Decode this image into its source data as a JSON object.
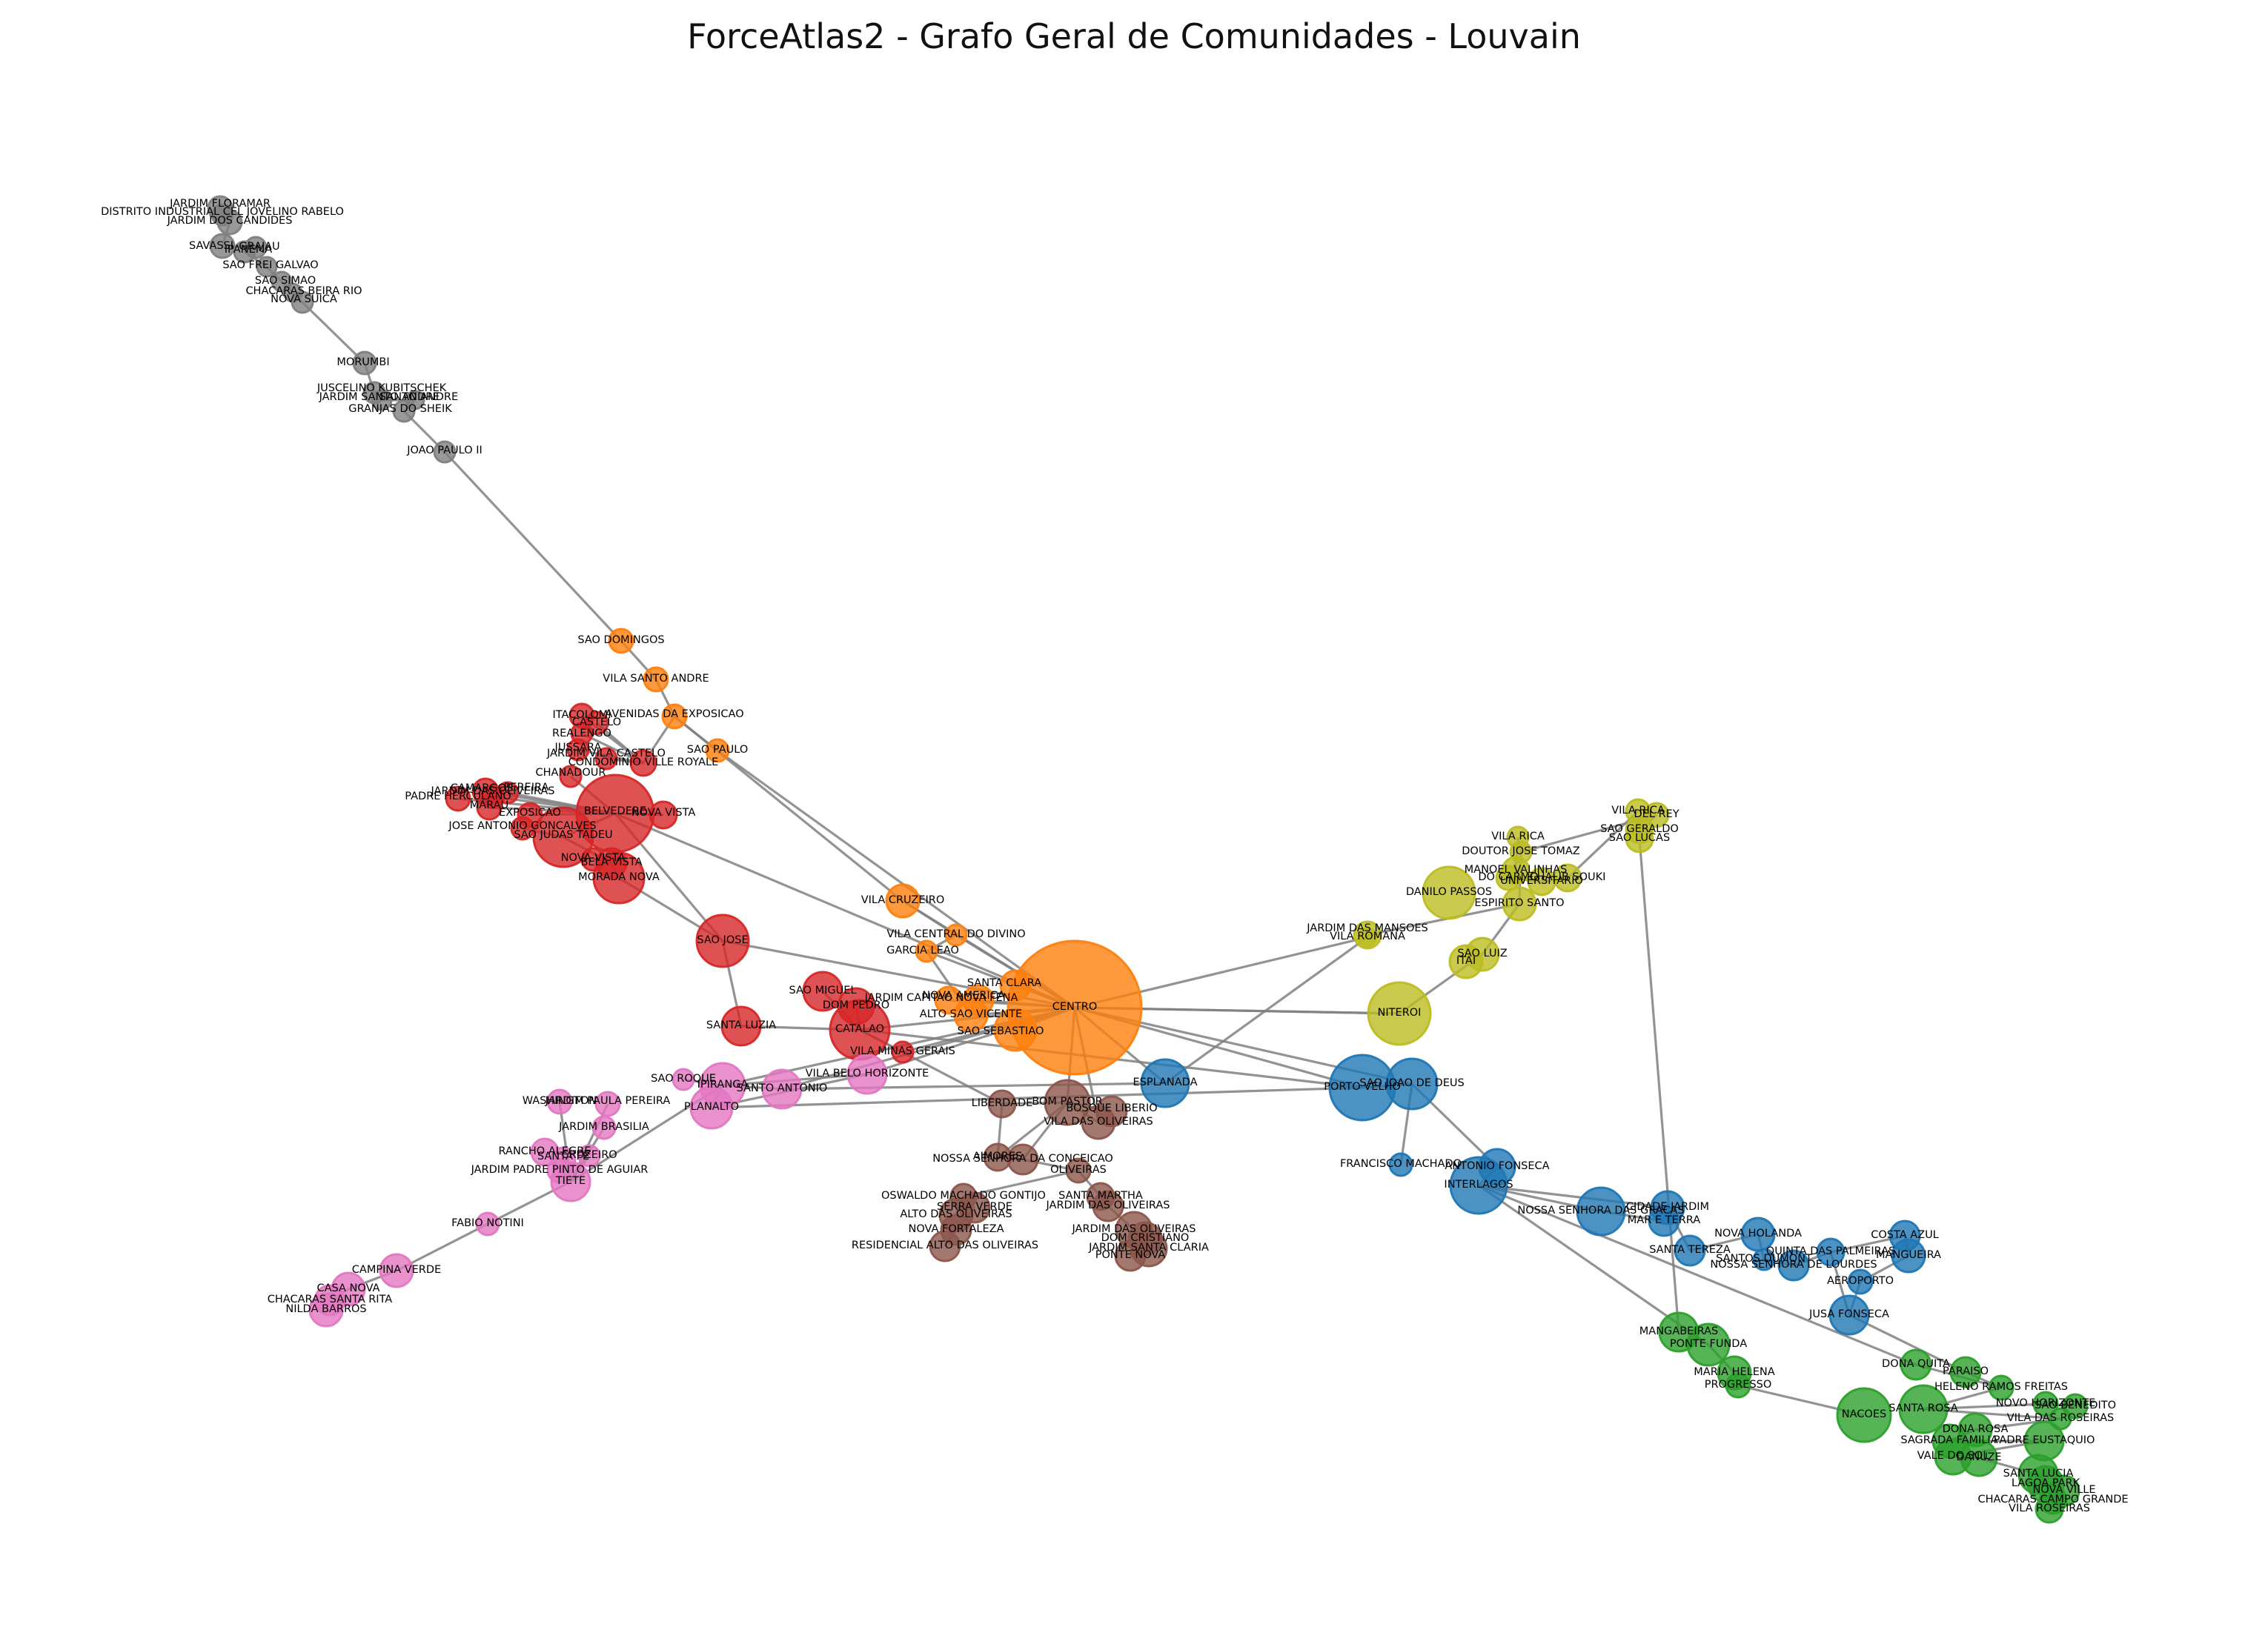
{
  "title": "ForceAtlas2 - Grafo Geral de Comunidades - Louvain",
  "colors": {
    "orange": "#ff7f0e",
    "red": "#d62728",
    "pink": "#e377c2",
    "gray": "#7f7f7f",
    "blue": "#1f77b4",
    "olive": "#bcbd22",
    "brown": "#8c564b",
    "green": "#2ca02c",
    "edge": "#808080"
  },
  "nodes": [
    {
      "label": "JARDIM FLORAMAR",
      "c": "gray"
    },
    {
      "label": "DISTRITO INDUSTRIAL CEL JOVELINO RABELO",
      "c": "gray"
    },
    {
      "label": "JARDIM DOS CANDIDES",
      "c": "gray"
    },
    {
      "label": "SAVASSI",
      "c": "gray"
    },
    {
      "label": "GRAJAU",
      "c": "gray"
    },
    {
      "label": "IPANEMA",
      "c": "gray"
    },
    {
      "label": "SAO FREI GALVAO",
      "c": "gray"
    },
    {
      "label": "SAO SIMAO",
      "c": "gray"
    },
    {
      "label": "CHACARAS BEIRA RIO",
      "c": "gray"
    },
    {
      "label": "NOVA SUICA",
      "c": "gray"
    },
    {
      "label": "MORUMBI",
      "c": "gray"
    },
    {
      "label": "JUSCELINO KUBITSCHEK",
      "c": "gray"
    },
    {
      "label": "JARDIM SANTO ANDRE",
      "c": "gray"
    },
    {
      "label": "SANTO ANDRE",
      "c": "gray"
    },
    {
      "label": "GRANJAS DO SHEIK",
      "c": "gray"
    },
    {
      "label": "JOAO PAULO II",
      "c": "gray"
    },
    {
      "label": "SAO DOMINGOS",
      "c": "orange"
    },
    {
      "label": "VILA SANTO ANDRE",
      "c": "orange"
    },
    {
      "label": "AVENIDAS DA EXPOSICAO",
      "c": "orange"
    },
    {
      "label": "SAO PAULO",
      "c": "orange"
    },
    {
      "label": "VILA CRUZEIRO",
      "c": "orange"
    },
    {
      "label": "VILA CENTRAL DO DIVINO",
      "c": "orange"
    },
    {
      "label": "GARCIA LEAO",
      "c": "orange"
    },
    {
      "label": "SANTA CLARA",
      "c": "orange"
    },
    {
      "label": "JARDIM CAPITAO NOVA FENA",
      "c": "orange"
    },
    {
      "label": "NOVA AMERICA",
      "c": "orange"
    },
    {
      "label": "ALTO SAO VICENTE",
      "c": "orange"
    },
    {
      "label": "SAO SEBASTIAO",
      "c": "orange"
    },
    {
      "label": "CENTRO",
      "c": "orange"
    },
    {
      "label": "ITACOLOMI",
      "c": "red"
    },
    {
      "label": "CASTELO",
      "c": "red"
    },
    {
      "label": "REALENGO",
      "c": "red"
    },
    {
      "label": "JUSSARA",
      "c": "red"
    },
    {
      "label": "JARDIM VILA CASTELO",
      "c": "red"
    },
    {
      "label": "CONDOMINIO VILLE ROYALE",
      "c": "red"
    },
    {
      "label": "CHANADOUR",
      "c": "red"
    },
    {
      "label": "JARDIM DAS OLIVEIRAS",
      "c": "red"
    },
    {
      "label": "PADRE HERCULANO",
      "c": "red"
    },
    {
      "label": "CAMARGOS",
      "c": "red"
    },
    {
      "label": "PEREIRA",
      "c": "red"
    },
    {
      "label": "MARAU",
      "c": "red"
    },
    {
      "label": "EXPOSICAO",
      "c": "red"
    },
    {
      "label": "BELVEDERE",
      "c": "red"
    },
    {
      "label": "NOVA VISTA",
      "c": "red"
    },
    {
      "label": "JOSE ANTONIO GONCALVES",
      "c": "red"
    },
    {
      "label": "SAO JUDAS TADEU",
      "c": "red"
    },
    {
      "label": "NOVA VISTA",
      "c": "red"
    },
    {
      "label": "BELA VISTA",
      "c": "red"
    },
    {
      "label": "MORADA NOVA",
      "c": "red"
    },
    {
      "label": "SAO JOSE",
      "c": "red"
    },
    {
      "label": "SANTA LUZIA",
      "c": "red"
    },
    {
      "label": "SAO MIGUEL",
      "c": "red"
    },
    {
      "label": "DOM PEDRO",
      "c": "red"
    },
    {
      "label": "CATALAO",
      "c": "red"
    },
    {
      "label": "VILA MINAS GERAIS",
      "c": "red"
    },
    {
      "label": "SAO ROQUE",
      "c": "pink"
    },
    {
      "label": "IPIRANGA",
      "c": "pink"
    },
    {
      "label": "PLANALTO",
      "c": "pink"
    },
    {
      "label": "SANTO ANTONIO",
      "c": "pink"
    },
    {
      "label": "VILA BELO HORIZONTE",
      "c": "pink"
    },
    {
      "label": "WASHINGTON",
      "c": "pink"
    },
    {
      "label": "JARDIM PAULA PEREIRA",
      "c": "pink"
    },
    {
      "label": "JARDIM BRASILIA",
      "c": "pink"
    },
    {
      "label": "RANCHO ALEGRE",
      "c": "pink"
    },
    {
      "label": "SANTA FE",
      "c": "pink"
    },
    {
      "label": "CRUZEIRO",
      "c": "pink"
    },
    {
      "label": "JARDIM PADRE PINTO DE AGUIAR",
      "c": "pink"
    },
    {
      "label": "TIETE",
      "c": "pink"
    },
    {
      "label": "FABIO NOTINI",
      "c": "pink"
    },
    {
      "label": "CAMPINA VERDE",
      "c": "pink"
    },
    {
      "label": "CASA NOVA",
      "c": "pink"
    },
    {
      "label": "CHACARAS SANTA RITA",
      "c": "pink"
    },
    {
      "label": "NILDA BARROS",
      "c": "pink"
    },
    {
      "label": "LIBERDADE",
      "c": "brown"
    },
    {
      "label": "BOM PASTOR",
      "c": "brown"
    },
    {
      "label": "BOSQUE LIBERIO",
      "c": "brown"
    },
    {
      "label": "VILA DAS OLIVEIRAS",
      "c": "brown"
    },
    {
      "label": "AIMORES",
      "c": "brown"
    },
    {
      "label": "NOSSA SENHORA DA CONCEICAO",
      "c": "brown"
    },
    {
      "label": "OLIVEIRAS",
      "c": "brown"
    },
    {
      "label": "OSWALDO MACHADO GONTIJO",
      "c": "brown"
    },
    {
      "label": "SERRA VERDE",
      "c": "brown"
    },
    {
      "label": "ALTO DAS OLIVEIRAS",
      "c": "brown"
    },
    {
      "label": "SANTA MARTHA",
      "c": "brown"
    },
    {
      "label": "JARDIM DAS OLIVEIRAS",
      "c": "brown"
    },
    {
      "label": "NOVA FORTALEZA",
      "c": "brown"
    },
    {
      "label": "RESIDENCIAL ALTO DAS OLIVEIRAS",
      "c": "brown"
    },
    {
      "label": "JARDIM DAS OLIVEIRAS",
      "c": "brown"
    },
    {
      "label": "DOM CRISTIANO",
      "c": "brown"
    },
    {
      "label": "JARDIM SANTA CLARIA",
      "c": "brown"
    },
    {
      "label": "PONTE NOVA",
      "c": "brown"
    },
    {
      "label": "ESPLANADA",
      "c": "blue"
    },
    {
      "label": "PORTO VELHO",
      "c": "blue"
    },
    {
      "label": "SAO JOAO DE DEUS",
      "c": "blue"
    },
    {
      "label": "FRANCISCO MACHADO",
      "c": "blue"
    },
    {
      "label": "ANTONIO FONSECA",
      "c": "blue"
    },
    {
      "label": "INTERLAGOS",
      "c": "blue"
    },
    {
      "label": "NOSSA SENHORA DAS GRACAS",
      "c": "blue"
    },
    {
      "label": "CIDADE JARDIM",
      "c": "blue"
    },
    {
      "label": "MAR E TERRA",
      "c": "blue"
    },
    {
      "label": "SANTA TEREZA",
      "c": "blue"
    },
    {
      "label": "NOVA HOLANDA",
      "c": "blue"
    },
    {
      "label": "SANTOS DUMONT",
      "c": "blue"
    },
    {
      "label": "NOSSA SENHORA DE LOURDES",
      "c": "blue"
    },
    {
      "label": "QUINTA DAS PALMEIRAS",
      "c": "blue"
    },
    {
      "label": "COSTA AZUL",
      "c": "blue"
    },
    {
      "label": "MANGUEIRA",
      "c": "blue"
    },
    {
      "label": "AEROPORTO",
      "c": "blue"
    },
    {
      "label": "JUSA FONSECA",
      "c": "blue"
    },
    {
      "label": "NITEROI",
      "c": "olive"
    },
    {
      "label": "ITAI",
      "c": "olive"
    },
    {
      "label": "SAO LUIZ",
      "c": "olive"
    },
    {
      "label": "JARDIM DAS MANSOES",
      "c": "olive"
    },
    {
      "label": "VILA ROMANA",
      "c": "olive"
    },
    {
      "label": "DANILO PASSOS",
      "c": "olive"
    },
    {
      "label": "ESPIRITO SANTO",
      "c": "olive"
    },
    {
      "label": "DOUTOR JOSE TOMAZ",
      "c": "olive"
    },
    {
      "label": "VILA RICA",
      "c": "olive"
    },
    {
      "label": "MANOEL VALINHAS",
      "c": "olive"
    },
    {
      "label": "DO CARMO",
      "c": "olive"
    },
    {
      "label": "UNIVERSITARIO",
      "c": "olive"
    },
    {
      "label": "CHALIB SOUKI",
      "c": "olive"
    },
    {
      "label": "VILA RICA",
      "c": "olive"
    },
    {
      "label": "DEL REY",
      "c": "olive"
    },
    {
      "label": "SAO GERALDO",
      "c": "olive"
    },
    {
      "label": "SAO LUCAS",
      "c": "olive"
    },
    {
      "label": "MANGABEIRAS",
      "c": "green"
    },
    {
      "label": "PONTE FUNDA",
      "c": "green"
    },
    {
      "label": "MARIA HELENA",
      "c": "green"
    },
    {
      "label": "PROGRESSO",
      "c": "green"
    },
    {
      "label": "NACOES",
      "c": "green"
    },
    {
      "label": "DONA QUITA",
      "c": "green"
    },
    {
      "label": "PARAISO",
      "c": "green"
    },
    {
      "label": "HELENO RAMOS FREITAS",
      "c": "green"
    },
    {
      "label": "SANTA ROSA",
      "c": "green"
    },
    {
      "label": "NOVO HORIZONTE",
      "c": "green"
    },
    {
      "label": "SAO BENEDITO",
      "c": "green"
    },
    {
      "label": "VILA DAS ROSEIRAS",
      "c": "green"
    },
    {
      "label": "DONA ROSA",
      "c": "green"
    },
    {
      "label": "SAGRADA FAMILIA",
      "c": "green"
    },
    {
      "label": "PADRE EUSTAQUIO",
      "c": "green"
    },
    {
      "label": "VALE DO SOL",
      "c": "green"
    },
    {
      "label": "DANUZE",
      "c": "green"
    },
    {
      "label": "SANTA LUCIA",
      "c": "green"
    },
    {
      "label": "LAGOA PARK",
      "c": "green"
    },
    {
      "label": "NOVA VILLE",
      "c": "green"
    },
    {
      "label": "CHACARAS CAMPO GRANDE",
      "c": "green"
    },
    {
      "label": "VILA ROSEIRAS",
      "c": "green"
    }
  ]
}
